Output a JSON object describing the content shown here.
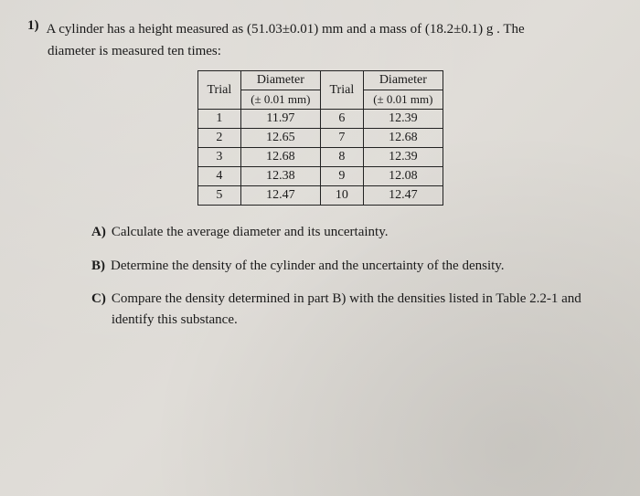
{
  "problem": {
    "number": "1)",
    "text_line1": "A cylinder has a height measured as (51.03±0.01) mm and a mass of (18.2±0.1) g . The",
    "text_line2": "diameter is measured ten times:"
  },
  "table": {
    "columns": {
      "trial_left": "Trial",
      "diameter_left": "Diameter",
      "diameter_left_sub": "(± 0.01 mm)",
      "trial_right": "Trial",
      "diameter_right": "Diameter",
      "diameter_right_sub": "(± 0.01 mm)"
    },
    "rows": [
      {
        "t1": "1",
        "d1": "11.97",
        "t2": "6",
        "d2": "12.39"
      },
      {
        "t1": "2",
        "d1": "12.65",
        "t2": "7",
        "d2": "12.68"
      },
      {
        "t1": "3",
        "d1": "12.68",
        "t2": "8",
        "d2": "12.39"
      },
      {
        "t1": "4",
        "d1": "12.38",
        "t2": "9",
        "d2": "12.08"
      },
      {
        "t1": "5",
        "d1": "12.47",
        "t2": "10",
        "d2": "12.47"
      }
    ],
    "border_color": "#222222",
    "cell_fontsize": 14
  },
  "parts": {
    "a": {
      "label": "A)",
      "text": "Calculate the average diameter and its uncertainty."
    },
    "b": {
      "label": "B)",
      "text": "Determine the density of the cylinder and the uncertainty of the density."
    },
    "c": {
      "label": "C)",
      "text": "Compare the density determined in part B) with the densities listed in Table 2.2-1 and identify this substance."
    }
  },
  "colors": {
    "text": "#1a1a1a",
    "background": "#dcd9d3"
  }
}
